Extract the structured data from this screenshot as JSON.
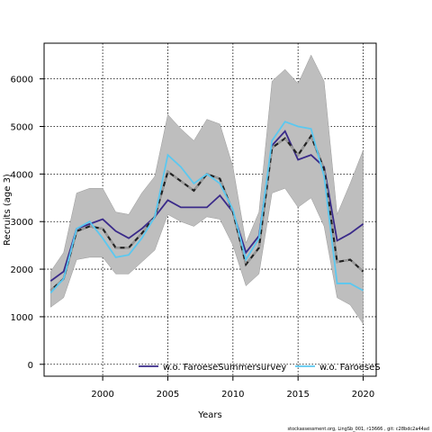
{
  "chart_data": {
    "type": "line",
    "title": "",
    "xlabel": "Years",
    "ylabel": "Recruits (age 3)",
    "xlim": [
      1995.5,
      2021
    ],
    "ylim": [
      -250,
      6750
    ],
    "xticks": [
      2000,
      2005,
      2010,
      2015,
      2020
    ],
    "yticks": [
      0,
      1000,
      2000,
      3000,
      4000,
      5000,
      6000
    ],
    "grid": true,
    "x": [
      1996,
      1997,
      1998,
      1999,
      2000,
      2001,
      2002,
      2003,
      2004,
      2005,
      2006,
      2007,
      2008,
      2009,
      2010,
      2011,
      2012,
      2013,
      2014,
      2015,
      2016,
      2017,
      2018,
      2019,
      2020
    ],
    "confidence_band": {
      "lower": [
        1200,
        1400,
        2200,
        2250,
        2250,
        1900,
        1900,
        2150,
        2400,
        3150,
        3000,
        2900,
        3100,
        3050,
        2500,
        1650,
        1900,
        3600,
        3700,
        3300,
        3500,
        2900,
        1400,
        1250,
        850
      ],
      "upper": [
        1950,
        2350,
        3600,
        3700,
        3700,
        3200,
        3150,
        3600,
        3950,
        5250,
        4950,
        4700,
        5150,
        5050,
        4150,
        2550,
        3200,
        5950,
        6200,
        5900,
        6500,
        5950,
        3150,
        3800,
        4500
      ]
    },
    "series": [
      {
        "name": "",
        "style": "solid",
        "color": "#3a2a8a",
        "values": [
          1750,
          1950,
          2850,
          2950,
          3050,
          2800,
          2650,
          2850,
          3100,
          3450,
          3300,
          3300,
          3300,
          3550,
          3200,
          2350,
          2700,
          4600,
          4900,
          4300,
          4400,
          4150,
          2600,
          2750,
          2950
        ]
      },
      {
        "name": "",
        "style": "dashed",
        "color": "#222222",
        "values": [
          1550,
          1800,
          2800,
          2900,
          2850,
          2450,
          2450,
          2750,
          3100,
          4050,
          3850,
          3650,
          4000,
          3900,
          3200,
          2100,
          2450,
          4550,
          4750,
          4400,
          4800,
          4100,
          2150,
          2200,
          1950
        ]
      },
      {
        "name": "",
        "style": "solid",
        "color": "#5bc8f0",
        "values": [
          1500,
          1800,
          2850,
          3000,
          2650,
          2250,
          2300,
          2650,
          3100,
          4400,
          4150,
          3800,
          4000,
          3800,
          3250,
          2200,
          2650,
          4700,
          5100,
          5000,
          4950,
          3950,
          1700,
          1700,
          1550
        ]
      }
    ],
    "legend": {
      "placement": "bottom",
      "entries": [
        {
          "label": "w.o. FaroeseSummersurvey",
          "color": "#3a2a8a"
        },
        {
          "label": "w.o. FaroeseS",
          "color": "#5bc8f0"
        }
      ]
    },
    "colors": {
      "band": "#bebebe",
      "band_edge": "#999999",
      "grid": "#000000"
    },
    "footer": "stockassessment.org, LingSb_001, r13666 , git: c28bdc2a44ad"
  }
}
